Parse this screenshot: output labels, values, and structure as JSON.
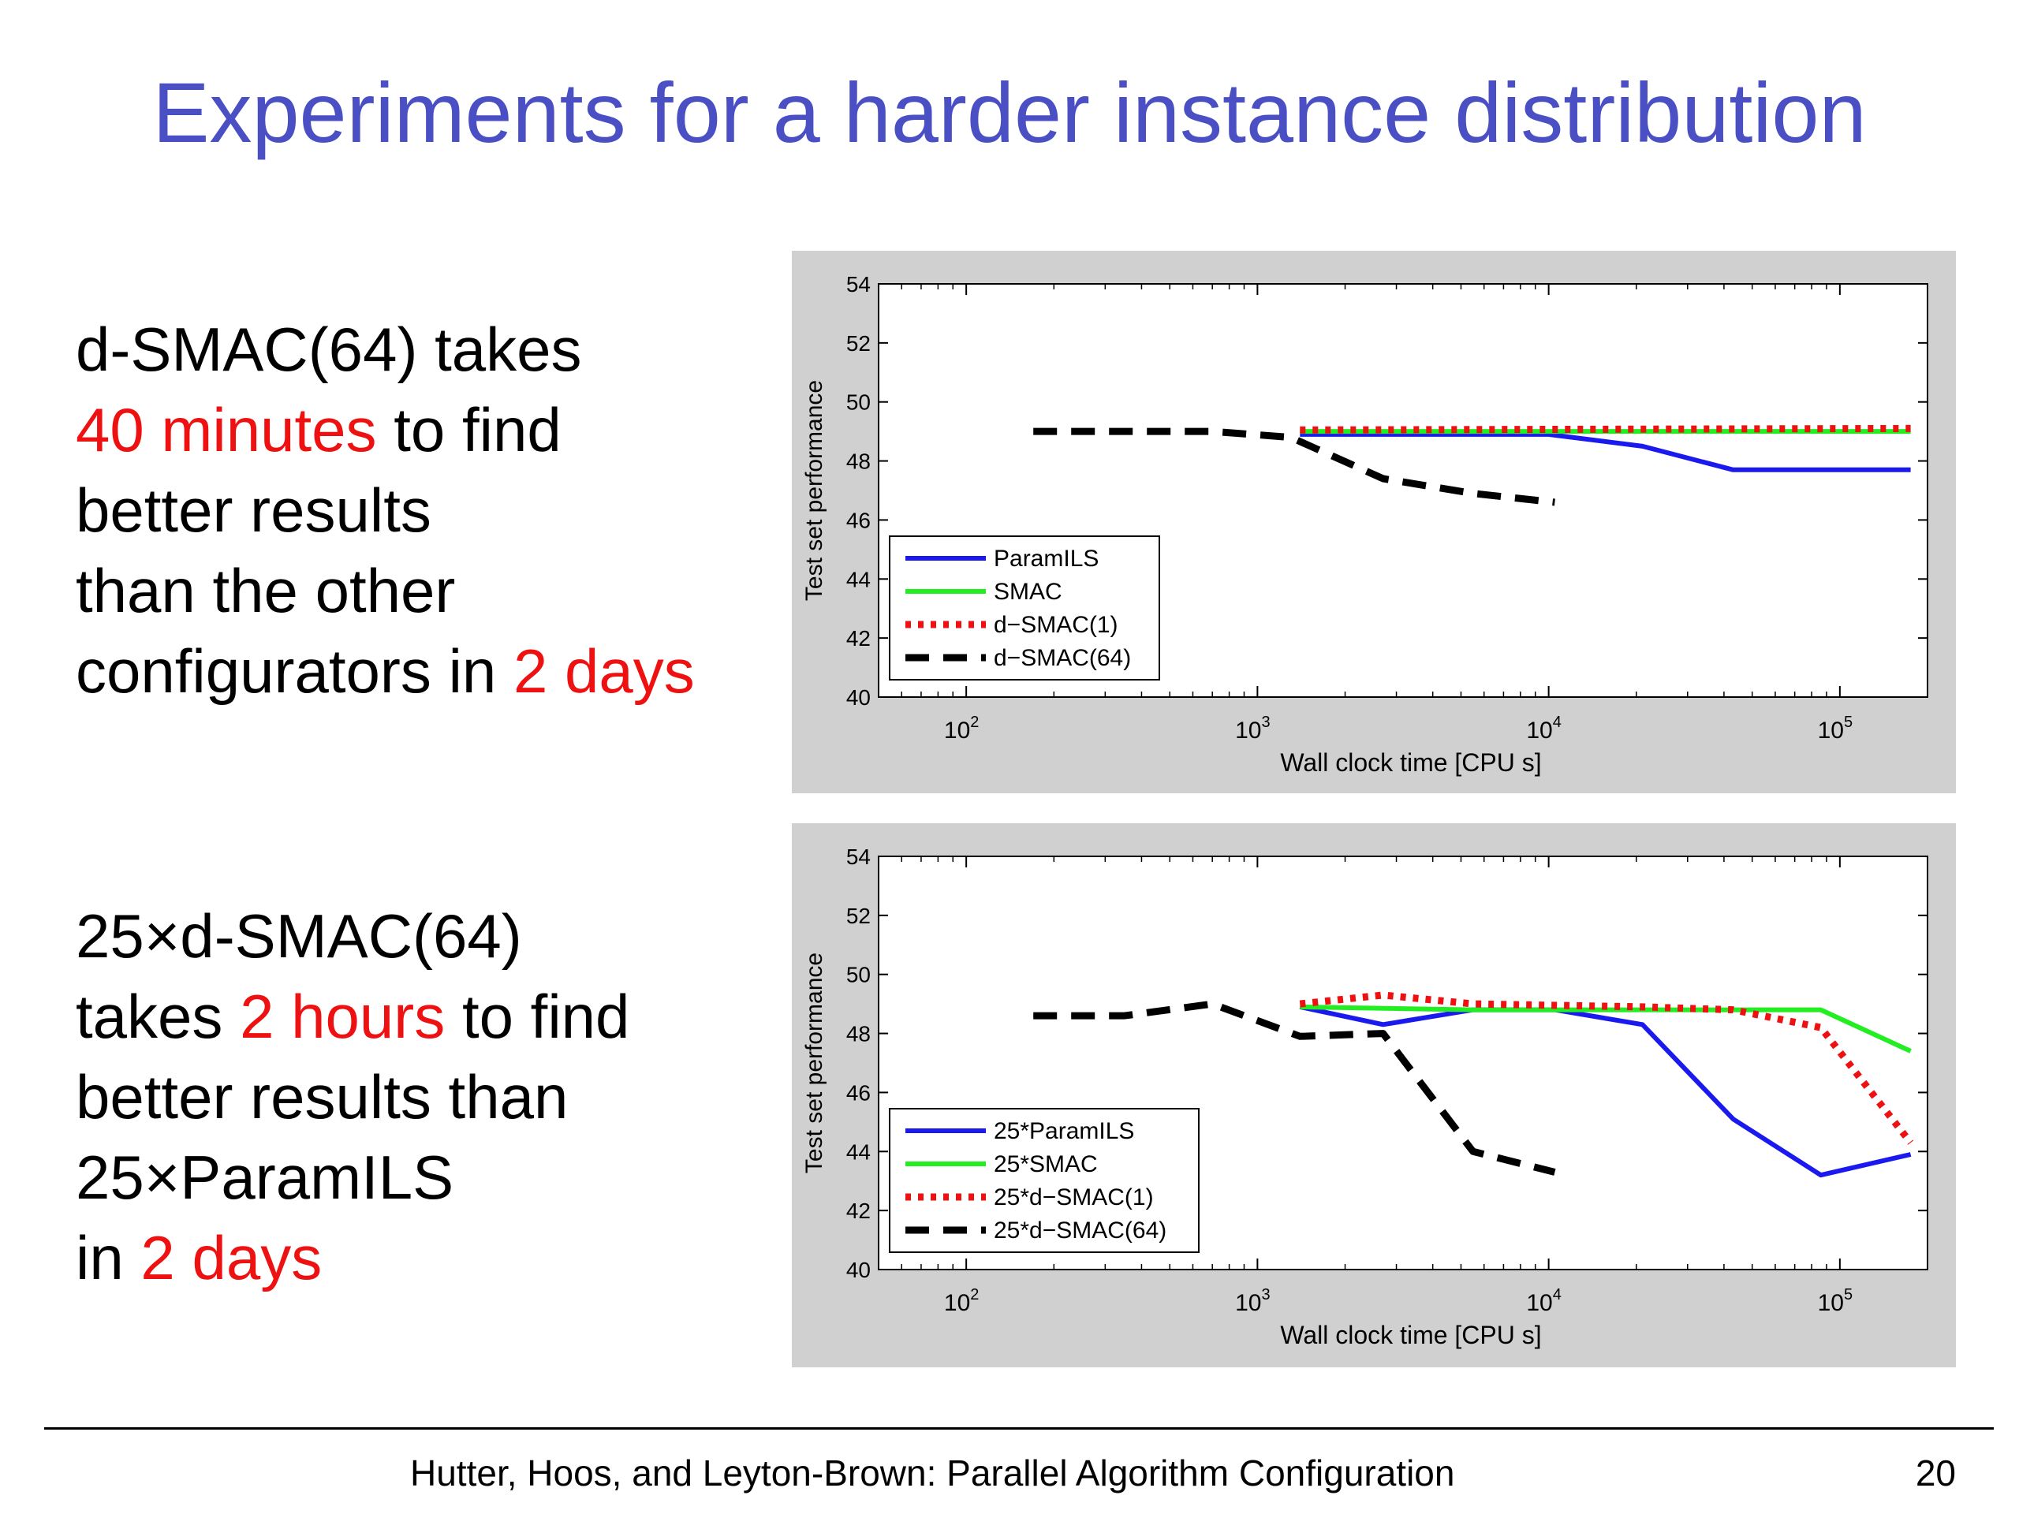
{
  "slide": {
    "title": "Experiments for a harder instance distribution",
    "footer": "Hutter, Hoos, and Leyton-Brown: Parallel Algorithm Configuration",
    "page_number": "20"
  },
  "text_blocks": [
    {
      "lines": [
        [
          {
            "text": "d-SMAC(64) takes",
            "highlight": false
          }
        ],
        [
          {
            "text": "40 minutes",
            "highlight": true
          },
          {
            "text": " to find",
            "highlight": false
          }
        ],
        [
          {
            "text": "better results",
            "highlight": false
          }
        ],
        [
          {
            "text": "than the other",
            "highlight": false
          }
        ],
        [
          {
            "text": "configurators in ",
            "highlight": false
          },
          {
            "text": "2 days",
            "highlight": true
          }
        ]
      ]
    },
    {
      "lines": [
        [
          {
            "text": "25×d-SMAC(64)",
            "highlight": false
          }
        ],
        [
          {
            "text": "takes ",
            "highlight": false
          },
          {
            "text": "2 hours",
            "highlight": true
          },
          {
            "text": " to find",
            "highlight": false
          }
        ],
        [
          {
            "text": "better results than",
            "highlight": false
          }
        ],
        [
          {
            "text": "25×ParamILS",
            "highlight": false
          }
        ],
        [
          {
            "text": "in ",
            "highlight": false
          },
          {
            "text": "2 days",
            "highlight": true
          }
        ]
      ]
    }
  ],
  "colors": {
    "title": "#4a4fc4",
    "highlight": "#ee1111",
    "panel_background": "#d0d0d0"
  },
  "chart_data": [
    {
      "type": "line",
      "xlabel": "Wall clock time [CPU s]",
      "ylabel": "Test set performance",
      "x_scale": "log",
      "xlim": [
        50,
        200000
      ],
      "ylim": [
        40,
        54
      ],
      "yticks": [
        40,
        42,
        44,
        46,
        48,
        50,
        52,
        54
      ],
      "xticks": [
        {
          "base": "10",
          "exp": "2",
          "value": 100
        },
        {
          "base": "10",
          "exp": "3",
          "value": 1000
        },
        {
          "base": "10",
          "exp": "4",
          "value": 10000
        },
        {
          "base": "10",
          "exp": "5",
          "value": 100000
        }
      ],
      "grid": false,
      "legend_position": "lower-left",
      "series": [
        {
          "name": "ParamILS",
          "color": "#1a1aee",
          "style": "solid",
          "points": [
            [
              1400,
              48.9
            ],
            [
              10000,
              48.9
            ],
            [
              21000,
              48.5
            ],
            [
              43000,
              47.7
            ],
            [
              100000,
              47.7
            ],
            [
              175000,
              47.7
            ]
          ]
        },
        {
          "name": "SMAC",
          "color": "#22ee22",
          "style": "solid",
          "points": [
            [
              1400,
              49.0
            ],
            [
              175000,
              49.0
            ]
          ]
        },
        {
          "name": "d−SMAC(1)",
          "color": "#ee1111",
          "style": "dotted",
          "points": [
            [
              1400,
              49.05
            ],
            [
              175000,
              49.1
            ]
          ]
        },
        {
          "name": "d−SMAC(64)",
          "color": "#000000",
          "style": "dashed",
          "points": [
            [
              170,
              49.0
            ],
            [
              700,
              49.0
            ],
            [
              1300,
              48.8
            ],
            [
              2700,
              47.4
            ],
            [
              5500,
              46.9
            ],
            [
              10500,
              46.6
            ]
          ]
        }
      ]
    },
    {
      "type": "line",
      "xlabel": "Wall clock time [CPU s]",
      "ylabel": "Test set performance",
      "x_scale": "log",
      "xlim": [
        50,
        200000
      ],
      "ylim": [
        40,
        54
      ],
      "yticks": [
        40,
        42,
        44,
        46,
        48,
        50,
        52,
        54
      ],
      "xticks": [
        {
          "base": "10",
          "exp": "2",
          "value": 100
        },
        {
          "base": "10",
          "exp": "3",
          "value": 1000
        },
        {
          "base": "10",
          "exp": "4",
          "value": 10000
        },
        {
          "base": "10",
          "exp": "5",
          "value": 100000
        }
      ],
      "grid": false,
      "legend_position": "lower-left",
      "series": [
        {
          "name": "25*ParamILS",
          "color": "#1a1aee",
          "style": "solid",
          "points": [
            [
              1400,
              48.9
            ],
            [
              2700,
              48.3
            ],
            [
              5500,
              48.8
            ],
            [
              10500,
              48.8
            ],
            [
              21000,
              48.3
            ],
            [
              43000,
              45.1
            ],
            [
              86000,
              43.2
            ],
            [
              175000,
              43.9
            ]
          ]
        },
        {
          "name": "25*SMAC",
          "color": "#22ee22",
          "style": "solid",
          "points": [
            [
              1400,
              48.9
            ],
            [
              5500,
              48.8
            ],
            [
              86000,
              48.8
            ],
            [
              175000,
              47.4
            ]
          ]
        },
        {
          "name": "25*d−SMAC(1)",
          "color": "#ee1111",
          "style": "dotted",
          "points": [
            [
              1400,
              49.0
            ],
            [
              2700,
              49.3
            ],
            [
              5500,
              49.0
            ],
            [
              21000,
              48.9
            ],
            [
              43000,
              48.8
            ],
            [
              86000,
              48.2
            ],
            [
              175000,
              44.3
            ]
          ]
        },
        {
          "name": "25*d−SMAC(64)",
          "color": "#000000",
          "style": "dashed",
          "points": [
            [
              170,
              48.6
            ],
            [
              350,
              48.6
            ],
            [
              700,
              49.0
            ],
            [
              1400,
              47.9
            ],
            [
              2700,
              48.0
            ],
            [
              5500,
              44.0
            ],
            [
              10500,
              43.3
            ]
          ]
        }
      ]
    }
  ]
}
